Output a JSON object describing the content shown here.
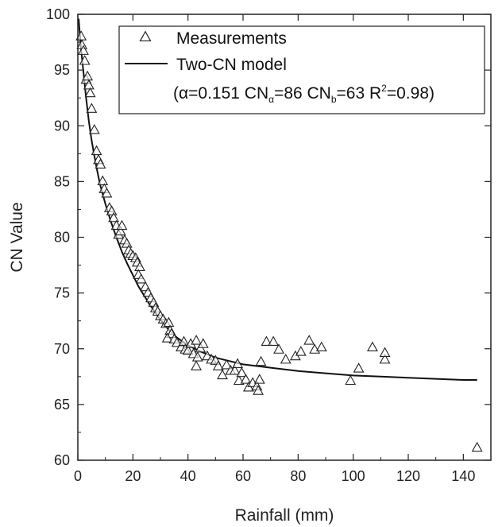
{
  "chart_data": {
    "type": "scatter",
    "title": "",
    "xlabel": "Rainfall (mm)",
    "ylabel": "CN Value",
    "xlim": [
      0,
      150
    ],
    "ylim": [
      60,
      100
    ],
    "xticks": [
      0,
      20,
      40,
      60,
      80,
      100,
      120,
      140
    ],
    "yticks": [
      60,
      65,
      70,
      75,
      80,
      85,
      90,
      95,
      100
    ],
    "grid": false,
    "legend_position": "top-right",
    "colors": {
      "axis": "#222222",
      "marker": "#222222",
      "line": "#111111"
    },
    "legend": {
      "measurements_label": "Measurements",
      "model_label": "Two-CN model",
      "params": {
        "open_alpha": "(α=0.151 CN",
        "sub_alpha": "α",
        "after_alpha": "=86 CN",
        "sub_b": "b",
        "after_b": "=63 R",
        "sup_2": "2",
        "end": "=0.98)"
      }
    },
    "series": [
      {
        "name": "Measurements",
        "type": "scatter",
        "marker": "triangle-open",
        "points": [
          [
            1.2,
            98.0
          ],
          [
            1.5,
            97.2
          ],
          [
            2.0,
            96.7
          ],
          [
            2.5,
            95.8
          ],
          [
            3.0,
            94.1
          ],
          [
            3.5,
            94.4
          ],
          [
            4.0,
            93.6
          ],
          [
            4.5,
            92.9
          ],
          [
            5.0,
            91.5
          ],
          [
            6.0,
            89.6
          ],
          [
            6.8,
            87.7
          ],
          [
            7.5,
            86.9
          ],
          [
            8.2,
            86.5
          ],
          [
            9.0,
            85.0
          ],
          [
            9.6,
            84.3
          ],
          [
            10.5,
            83.9
          ],
          [
            11.5,
            82.6
          ],
          [
            12.3,
            82.3
          ],
          [
            13.0,
            81.7
          ],
          [
            14.0,
            81.0
          ],
          [
            14.8,
            80.2
          ],
          [
            15.5,
            80.5
          ],
          [
            16.0,
            81.0
          ],
          [
            17.0,
            79.7
          ],
          [
            17.8,
            79.4
          ],
          [
            18.5,
            78.8
          ],
          [
            19.2,
            78.5
          ],
          [
            20.0,
            78.3
          ],
          [
            21.0,
            78.1
          ],
          [
            21.6,
            77.7
          ],
          [
            22.5,
            77.3
          ],
          [
            22.0,
            76.6
          ],
          [
            23.0,
            76.2
          ],
          [
            24.5,
            75.5
          ],
          [
            25.5,
            75.0
          ],
          [
            26.5,
            74.5
          ],
          [
            27.5,
            74.1
          ],
          [
            28.2,
            73.6
          ],
          [
            29.0,
            73.3
          ],
          [
            30.0,
            72.9
          ],
          [
            31.0,
            72.6
          ],
          [
            32.0,
            72.2
          ],
          [
            33.0,
            72.3
          ],
          [
            33.5,
            71.6
          ],
          [
            34.0,
            71.3
          ],
          [
            32.5,
            70.9
          ],
          [
            35.0,
            70.8
          ],
          [
            36.0,
            70.5
          ],
          [
            37.5,
            70.1
          ],
          [
            38.5,
            70.6
          ],
          [
            39.0,
            69.9
          ],
          [
            40.0,
            69.8
          ],
          [
            41.0,
            70.4
          ],
          [
            42.0,
            69.5
          ],
          [
            43.0,
            70.7
          ],
          [
            43.5,
            69.2
          ],
          [
            44.5,
            70.0
          ],
          [
            45.5,
            70.4
          ],
          [
            43.0,
            68.4
          ],
          [
            47.0,
            69.3
          ],
          [
            48.5,
            69.0
          ],
          [
            50.0,
            68.9
          ],
          [
            51.0,
            68.4
          ],
          [
            52.5,
            67.6
          ],
          [
            54.0,
            68.5
          ],
          [
            55.5,
            68.0
          ],
          [
            57.0,
            68.0
          ],
          [
            58.0,
            68.6
          ],
          [
            58.5,
            67.1
          ],
          [
            59.5,
            67.8
          ],
          [
            61.0,
            67.2
          ],
          [
            62.0,
            66.5
          ],
          [
            63.5,
            66.9
          ],
          [
            65.0,
            66.6
          ],
          [
            65.5,
            66.2
          ],
          [
            66.0,
            67.2
          ],
          [
            66.5,
            68.8
          ],
          [
            68.5,
            70.6
          ],
          [
            71.0,
            70.6
          ],
          [
            73.0,
            69.9
          ],
          [
            75.5,
            69.0
          ],
          [
            79.0,
            69.3
          ],
          [
            81.0,
            69.7
          ],
          [
            84.0,
            70.7
          ],
          [
            86.0,
            69.9
          ],
          [
            88.5,
            70.1
          ],
          [
            99.0,
            67.1
          ],
          [
            102.0,
            68.2
          ],
          [
            107.0,
            70.1
          ],
          [
            111.5,
            69.0
          ],
          [
            111.5,
            69.6
          ],
          [
            145.0,
            61.1
          ]
        ]
      },
      {
        "name": "Two-CN model",
        "type": "line",
        "points": [
          [
            0.3,
            99.6
          ],
          [
            1,
            97.3
          ],
          [
            2,
            94.9
          ],
          [
            3,
            92.5
          ],
          [
            4,
            90.4
          ],
          [
            5,
            88.7
          ],
          [
            6,
            87.3
          ],
          [
            7,
            86.0
          ],
          [
            8,
            84.8
          ],
          [
            10,
            83.0
          ],
          [
            12,
            81.4
          ],
          [
            14,
            80.0
          ],
          [
            16,
            78.7
          ],
          [
            18,
            77.6
          ],
          [
            20,
            76.6
          ],
          [
            22,
            75.6
          ],
          [
            24,
            74.8
          ],
          [
            26,
            74.0
          ],
          [
            28,
            73.3
          ],
          [
            30,
            72.6
          ],
          [
            33,
            71.7
          ],
          [
            36,
            71.0
          ],
          [
            40,
            70.3
          ],
          [
            45,
            69.7
          ],
          [
            50,
            69.2
          ],
          [
            55,
            68.9
          ],
          [
            60,
            68.6
          ],
          [
            70,
            68.3
          ],
          [
            80,
            68.0
          ],
          [
            90,
            67.8
          ],
          [
            100,
            67.6
          ],
          [
            110,
            67.5
          ],
          [
            120,
            67.4
          ],
          [
            130,
            67.3
          ],
          [
            140,
            67.2
          ],
          [
            145,
            67.2
          ]
        ]
      }
    ]
  }
}
